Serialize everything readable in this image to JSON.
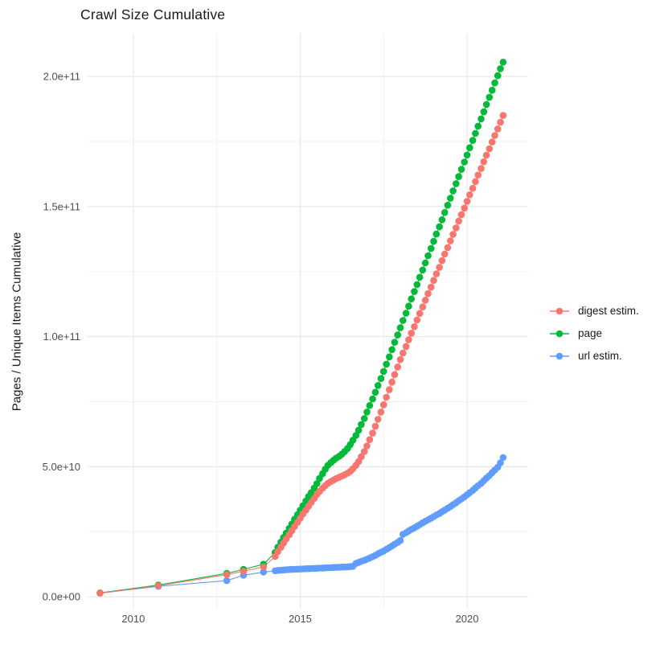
{
  "title": "Crawl Size Cumulative",
  "colors": {
    "background": "#FFFFFF",
    "grid_major": "#E7E7E7",
    "grid_minor": "#F2F2F2",
    "axis_text": "#4D4D4D",
    "text": "#1A1A1A",
    "digest": "#F8766D",
    "page": "#00BA38",
    "url": "#619CFF"
  },
  "chart_data": {
    "type": "line",
    "title": "Crawl Size Cumulative",
    "xlabel": "",
    "ylabel": "Pages / Unique Items Cumulative",
    "grid": true,
    "legend_position": "right",
    "note_units": "values_e9 are in units of 1e9 (billions), as read from the e-notation y axis",
    "x_domain": [
      2008.63,
      2021.83
    ],
    "y_domain_e9": [
      -4.6,
      216.4
    ],
    "x_ticks": {
      "values": [
        2010,
        2015,
        2020
      ],
      "labels": [
        "2010",
        "2015",
        "2020"
      ],
      "minor": [
        2012.5,
        2017.5
      ]
    },
    "y_ticks": {
      "values_e9": [
        0,
        50,
        100,
        150,
        200
      ],
      "labels": [
        "0.0e+00",
        "5.0e+10",
        "1.0e+11",
        "1.5e+11",
        "2.0e+11"
      ],
      "minor_e9": [
        25,
        75,
        125,
        175
      ]
    },
    "x": [
      2009.0,
      2010.75,
      2012.8,
      2013.3,
      2013.9,
      2014.25,
      2014.33,
      2014.42,
      2014.5,
      2014.58,
      2014.67,
      2014.75,
      2014.83,
      2014.92,
      2015.0,
      2015.08,
      2015.17,
      2015.25,
      2015.33,
      2015.42,
      2015.5,
      2015.58,
      2015.67,
      2015.75,
      2015.83,
      2015.92,
      2016.0,
      2016.08,
      2016.17,
      2016.25,
      2016.33,
      2016.42,
      2016.5,
      2016.58,
      2016.67,
      2016.75,
      2016.83,
      2016.92,
      2017.0,
      2017.08,
      2017.17,
      2017.25,
      2017.33,
      2017.42,
      2017.5,
      2017.58,
      2017.67,
      2017.75,
      2017.83,
      2017.92,
      2018.0,
      2018.08,
      2018.17,
      2018.25,
      2018.33,
      2018.42,
      2018.5,
      2018.58,
      2018.67,
      2018.75,
      2018.83,
      2018.92,
      2019.0,
      2019.08,
      2019.17,
      2019.25,
      2019.33,
      2019.42,
      2019.5,
      2019.58,
      2019.67,
      2019.75,
      2019.83,
      2019.92,
      2020.0,
      2020.08,
      2020.17,
      2020.25,
      2020.33,
      2020.42,
      2020.5,
      2020.58,
      2020.67,
      2020.75,
      2020.83,
      2020.92,
      2021.0,
      2021.08
    ],
    "series": [
      {
        "name": "digest estim.",
        "color": "#F8766D",
        "values_e9": [
          1.4,
          4.2,
          8.5,
          9.8,
          11.5,
          15.5,
          17.3,
          19.0,
          20.6,
          22.2,
          23.8,
          25.4,
          27.0,
          28.6,
          30.2,
          31.8,
          33.3,
          34.8,
          36.3,
          37.8,
          39.3,
          40.5,
          41.7,
          42.7,
          43.6,
          44.3,
          44.9,
          45.4,
          45.9,
          46.4,
          46.9,
          47.5,
          48.2,
          49.2,
          50.5,
          52.0,
          53.8,
          55.8,
          58.0,
          60.4,
          62.9,
          65.5,
          68.2,
          71.0,
          73.8,
          76.7,
          79.6,
          82.5,
          85.4,
          88.3,
          91.2,
          93.7,
          96.2,
          98.8,
          101.3,
          103.8,
          106.4,
          108.9,
          111.4,
          114.0,
          116.5,
          119.0,
          121.6,
          124.1,
          126.6,
          129.2,
          131.7,
          134.2,
          136.8,
          139.3,
          141.8,
          144.4,
          146.9,
          149.4,
          152.0,
          154.5,
          157.0,
          159.6,
          162.1,
          164.6,
          167.2,
          169.7,
          172.2,
          174.8,
          177.3,
          179.8,
          182.4,
          185.0
        ]
      },
      {
        "name": "page",
        "color": "#00BA38",
        "values_e9": [
          1.5,
          4.5,
          9.0,
          10.5,
          12.5,
          17.0,
          19.0,
          21.0,
          22.8,
          24.5,
          26.3,
          28.0,
          29.8,
          31.5,
          33.3,
          35.0,
          36.8,
          38.5,
          40.0,
          41.8,
          43.5,
          45.5,
          47.3,
          49.0,
          50.5,
          51.6,
          52.5,
          53.3,
          54.0,
          54.8,
          55.8,
          57.0,
          58.5,
          60.2,
          62.0,
          64.0,
          66.2,
          68.5,
          71.0,
          73.5,
          76.0,
          78.6,
          81.2,
          83.9,
          86.6,
          89.4,
          92.2,
          95.0,
          97.8,
          100.6,
          103.4,
          106.2,
          109.0,
          111.7,
          114.5,
          117.3,
          120.0,
          122.8,
          125.6,
          128.3,
          131.1,
          133.9,
          136.6,
          139.4,
          142.2,
          144.9,
          147.7,
          150.5,
          153.2,
          156.0,
          158.8,
          161.5,
          164.3,
          167.1,
          169.8,
          172.6,
          175.4,
          178.1,
          180.9,
          183.7,
          186.4,
          189.2,
          192.0,
          194.7,
          197.5,
          200.3,
          203.0,
          205.5
        ]
      },
      {
        "name": "url estim.",
        "color": "#619CFF",
        "values_e9": [
          1.4,
          4.0,
          6.2,
          8.3,
          9.5,
          10.0,
          10.1,
          10.2,
          10.3,
          10.4,
          10.45,
          10.5,
          10.55,
          10.6,
          10.65,
          10.7,
          10.75,
          10.8,
          10.85,
          10.9,
          10.95,
          11.0,
          11.05,
          11.1,
          11.15,
          11.2,
          11.25,
          11.3,
          11.35,
          11.4,
          11.45,
          11.5,
          11.6,
          11.7,
          12.8,
          13.2,
          13.6,
          14.0,
          14.4,
          14.9,
          15.4,
          15.9,
          16.5,
          17.1,
          17.6,
          18.2,
          18.9,
          19.5,
          20.2,
          20.9,
          21.6,
          24.0,
          24.6,
          25.3,
          25.9,
          26.5,
          27.1,
          27.7,
          28.4,
          29.0,
          29.6,
          30.2,
          30.8,
          31.4,
          32.0,
          32.7,
          33.3,
          34.0,
          34.7,
          35.4,
          36.1,
          36.9,
          37.6,
          38.4,
          39.2,
          40.0,
          40.9,
          41.8,
          42.7,
          43.6,
          44.6,
          45.6,
          46.6,
          47.7,
          48.7,
          49.8,
          51.5,
          53.5
        ]
      }
    ],
    "draw_order": [
      "page",
      "url estim.",
      "digest estim."
    ],
    "legend_order": [
      "digest estim.",
      "page",
      "url estim."
    ]
  }
}
